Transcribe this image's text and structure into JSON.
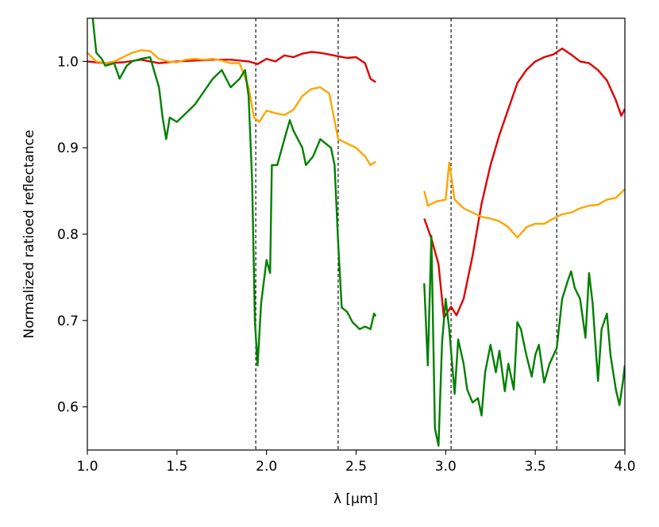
{
  "chart_data": {
    "type": "line",
    "title": "",
    "xlabel": "λ [µm]",
    "ylabel": "Normalized ratioed reflectance",
    "xlim": [
      1.0,
      4.0
    ],
    "ylim": [
      0.55,
      1.05
    ],
    "xticks": [
      1.0,
      1.5,
      2.0,
      2.5,
      3.0,
      3.5,
      4.0
    ],
    "xtick_labels": [
      "1.0",
      "1.5",
      "2.0",
      "2.5",
      "3.0",
      "3.5",
      "4.0"
    ],
    "yticks": [
      0.6,
      0.7,
      0.8,
      0.9,
      1.0
    ],
    "ytick_labels": [
      "0.6",
      "0.7",
      "0.8",
      "0.9",
      "1.0"
    ],
    "grid": false,
    "legend": "none",
    "vlines": [
      1.94,
      2.4,
      3.03,
      3.62
    ],
    "series": [
      {
        "color": "#e00000",
        "segments": [
          [
            [
              1.0,
              1.0
            ],
            [
              1.1,
              0.998
            ],
            [
              1.2,
              0.999
            ],
            [
              1.3,
              1.002
            ],
            [
              1.35,
              1.0
            ],
            [
              1.4,
              0.998
            ],
            [
              1.5,
              1.0
            ],
            [
              1.6,
              1.001
            ],
            [
              1.7,
              1.002
            ],
            [
              1.8,
              1.002
            ],
            [
              1.9,
              1.0
            ],
            [
              1.95,
              0.997
            ],
            [
              2.0,
              1.003
            ],
            [
              2.05,
              1.0
            ],
            [
              2.1,
              1.007
            ],
            [
              2.15,
              1.005
            ],
            [
              2.2,
              1.009
            ],
            [
              2.25,
              1.011
            ],
            [
              2.3,
              1.01
            ],
            [
              2.35,
              1.008
            ],
            [
              2.4,
              1.006
            ],
            [
              2.45,
              1.004
            ],
            [
              2.5,
              1.005
            ],
            [
              2.55,
              0.998
            ],
            [
              2.58,
              0.98
            ],
            [
              2.61,
              0.976
            ]
          ],
          [
            [
              2.88,
              0.818
            ],
            [
              2.92,
              0.795
            ],
            [
              2.96,
              0.765
            ],
            [
              2.99,
              0.703
            ],
            [
              3.03,
              0.716
            ],
            [
              3.06,
              0.706
            ],
            [
              3.1,
              0.725
            ],
            [
              3.15,
              0.775
            ],
            [
              3.2,
              0.835
            ],
            [
              3.25,
              0.88
            ],
            [
              3.3,
              0.915
            ],
            [
              3.35,
              0.945
            ],
            [
              3.4,
              0.975
            ],
            [
              3.45,
              0.99
            ],
            [
              3.5,
              1.0
            ],
            [
              3.55,
              1.005
            ],
            [
              3.6,
              1.008
            ],
            [
              3.65,
              1.015
            ],
            [
              3.7,
              1.008
            ],
            [
              3.75,
              1.0
            ],
            [
              3.8,
              0.998
            ],
            [
              3.85,
              0.99
            ],
            [
              3.9,
              0.978
            ],
            [
              3.95,
              0.955
            ],
            [
              3.98,
              0.937
            ],
            [
              4.0,
              0.945
            ]
          ]
        ]
      },
      {
        "color": "#ffa500",
        "segments": [
          [
            [
              1.0,
              1.01
            ],
            [
              1.05,
              1.0
            ],
            [
              1.1,
              0.998
            ],
            [
              1.15,
              1.0
            ],
            [
              1.2,
              1.005
            ],
            [
              1.25,
              1.01
            ],
            [
              1.3,
              1.013
            ],
            [
              1.35,
              1.012
            ],
            [
              1.4,
              1.003
            ],
            [
              1.45,
              1.0
            ],
            [
              1.5,
              0.999
            ],
            [
              1.55,
              1.002
            ],
            [
              1.6,
              1.003
            ],
            [
              1.65,
              1.002
            ],
            [
              1.7,
              1.003
            ],
            [
              1.75,
              1.001
            ],
            [
              1.8,
              0.998
            ],
            [
              1.85,
              0.998
            ],
            [
              1.9,
              0.97
            ],
            [
              1.93,
              0.935
            ],
            [
              1.96,
              0.93
            ],
            [
              2.0,
              0.943
            ],
            [
              2.05,
              0.94
            ],
            [
              2.1,
              0.938
            ],
            [
              2.15,
              0.944
            ],
            [
              2.2,
              0.96
            ],
            [
              2.25,
              0.968
            ],
            [
              2.3,
              0.97
            ],
            [
              2.35,
              0.963
            ],
            [
              2.4,
              0.91
            ],
            [
              2.45,
              0.905
            ],
            [
              2.5,
              0.9
            ],
            [
              2.55,
              0.89
            ],
            [
              2.58,
              0.88
            ],
            [
              2.61,
              0.884
            ]
          ],
          [
            [
              2.88,
              0.85
            ],
            [
              2.9,
              0.833
            ],
            [
              2.95,
              0.838
            ],
            [
              3.0,
              0.84
            ],
            [
              3.02,
              0.883
            ],
            [
              3.05,
              0.84
            ],
            [
              3.1,
              0.83
            ],
            [
              3.15,
              0.825
            ],
            [
              3.2,
              0.82
            ],
            [
              3.25,
              0.818
            ],
            [
              3.3,
              0.815
            ],
            [
              3.35,
              0.808
            ],
            [
              3.4,
              0.796
            ],
            [
              3.45,
              0.808
            ],
            [
              3.5,
              0.812
            ],
            [
              3.55,
              0.812
            ],
            [
              3.6,
              0.818
            ],
            [
              3.65,
              0.823
            ],
            [
              3.7,
              0.825
            ],
            [
              3.75,
              0.83
            ],
            [
              3.8,
              0.833
            ],
            [
              3.85,
              0.834
            ],
            [
              3.9,
              0.84
            ],
            [
              3.95,
              0.842
            ],
            [
              4.0,
              0.852
            ]
          ]
        ]
      },
      {
        "color": "#008000",
        "segments": [
          [
            [
              1.03,
              1.05
            ],
            [
              1.05,
              1.01
            ],
            [
              1.08,
              1.003
            ],
            [
              1.1,
              0.995
            ],
            [
              1.15,
              0.998
            ],
            [
              1.18,
              0.98
            ],
            [
              1.22,
              0.995
            ],
            [
              1.25,
              1.0
            ],
            [
              1.3,
              1.003
            ],
            [
              1.35,
              1.005
            ],
            [
              1.4,
              0.97
            ],
            [
              1.42,
              0.935
            ],
            [
              1.44,
              0.91
            ],
            [
              1.46,
              0.935
            ],
            [
              1.5,
              0.93
            ],
            [
              1.55,
              0.94
            ],
            [
              1.6,
              0.95
            ],
            [
              1.65,
              0.965
            ],
            [
              1.7,
              0.98
            ],
            [
              1.75,
              0.99
            ],
            [
              1.8,
              0.97
            ],
            [
              1.85,
              0.98
            ],
            [
              1.88,
              0.99
            ],
            [
              1.9,
              0.96
            ],
            [
              1.92,
              0.86
            ],
            [
              1.935,
              0.7
            ],
            [
              1.95,
              0.648
            ],
            [
              1.97,
              0.72
            ],
            [
              2.0,
              0.77
            ],
            [
              2.02,
              0.755
            ],
            [
              2.03,
              0.88
            ],
            [
              2.06,
              0.88
            ],
            [
              2.1,
              0.91
            ],
            [
              2.13,
              0.932
            ],
            [
              2.15,
              0.92
            ],
            [
              2.2,
              0.9
            ],
            [
              2.22,
              0.88
            ],
            [
              2.26,
              0.89
            ],
            [
              2.3,
              0.91
            ],
            [
              2.33,
              0.905
            ],
            [
              2.36,
              0.9
            ],
            [
              2.38,
              0.88
            ],
            [
              2.4,
              0.79
            ],
            [
              2.42,
              0.715
            ],
            [
              2.45,
              0.71
            ],
            [
              2.48,
              0.698
            ],
            [
              2.52,
              0.69
            ],
            [
              2.55,
              0.693
            ],
            [
              2.58,
              0.69
            ],
            [
              2.6,
              0.708
            ],
            [
              2.61,
              0.705
            ]
          ],
          [
            [
              2.88,
              0.743
            ],
            [
              2.9,
              0.648
            ],
            [
              2.92,
              0.798
            ],
            [
              2.94,
              0.575
            ],
            [
              2.96,
              0.555
            ],
            [
              2.98,
              0.675
            ],
            [
              3.0,
              0.725
            ],
            [
              3.02,
              0.69
            ],
            [
              3.05,
              0.615
            ],
            [
              3.07,
              0.678
            ],
            [
              3.1,
              0.65
            ],
            [
              3.12,
              0.62
            ],
            [
              3.15,
              0.605
            ],
            [
              3.18,
              0.61
            ],
            [
              3.2,
              0.59
            ],
            [
              3.22,
              0.64
            ],
            [
              3.25,
              0.672
            ],
            [
              3.28,
              0.64
            ],
            [
              3.3,
              0.665
            ],
            [
              3.33,
              0.618
            ],
            [
              3.35,
              0.65
            ],
            [
              3.38,
              0.62
            ],
            [
              3.4,
              0.698
            ],
            [
              3.42,
              0.69
            ],
            [
              3.45,
              0.66
            ],
            [
              3.48,
              0.635
            ],
            [
              3.5,
              0.66
            ],
            [
              3.52,
              0.672
            ],
            [
              3.55,
              0.628
            ],
            [
              3.58,
              0.65
            ],
            [
              3.62,
              0.668
            ],
            [
              3.65,
              0.725
            ],
            [
              3.68,
              0.745
            ],
            [
              3.7,
              0.757
            ],
            [
              3.72,
              0.738
            ],
            [
              3.75,
              0.725
            ],
            [
              3.78,
              0.68
            ],
            [
              3.8,
              0.755
            ],
            [
              3.82,
              0.72
            ],
            [
              3.85,
              0.63
            ],
            [
              3.87,
              0.69
            ],
            [
              3.9,
              0.708
            ],
            [
              3.92,
              0.66
            ],
            [
              3.95,
              0.62
            ],
            [
              3.97,
              0.602
            ],
            [
              3.99,
              0.63
            ],
            [
              4.0,
              0.648
            ]
          ]
        ]
      }
    ]
  }
}
